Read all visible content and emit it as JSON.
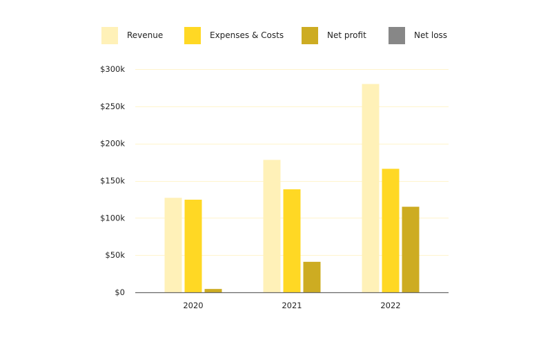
{
  "chart_data": {
    "type": "bar",
    "title": "",
    "xlabel": "",
    "ylabel": "",
    "categories": [
      "2020",
      "2021",
      "2022"
    ],
    "series": [
      {
        "name": "Revenue",
        "color": "#fff1b8",
        "values": [
          127000,
          178000,
          280000
        ]
      },
      {
        "name": "Expenses & Costs",
        "color": "#ffd824",
        "values": [
          124500,
          138500,
          166000
        ]
      },
      {
        "name": "Net profit",
        "color": "#cdac22",
        "values": [
          4500,
          41000,
          115000
        ]
      },
      {
        "name": "Net loss",
        "color": "#878787",
        "values": [
          0,
          0,
          0
        ]
      }
    ],
    "ylim": [
      0,
      300000
    ],
    "yticks": [
      0,
      50000,
      100000,
      150000,
      200000,
      250000,
      300000
    ],
    "ytick_labels": [
      "$0",
      "$50k",
      "$100k",
      "$150k",
      "$200k",
      "$250k",
      "$300k"
    ],
    "grid": true,
    "legend_position": "top",
    "gridline_color": "#fff4cc",
    "axis_color": "#666666"
  }
}
